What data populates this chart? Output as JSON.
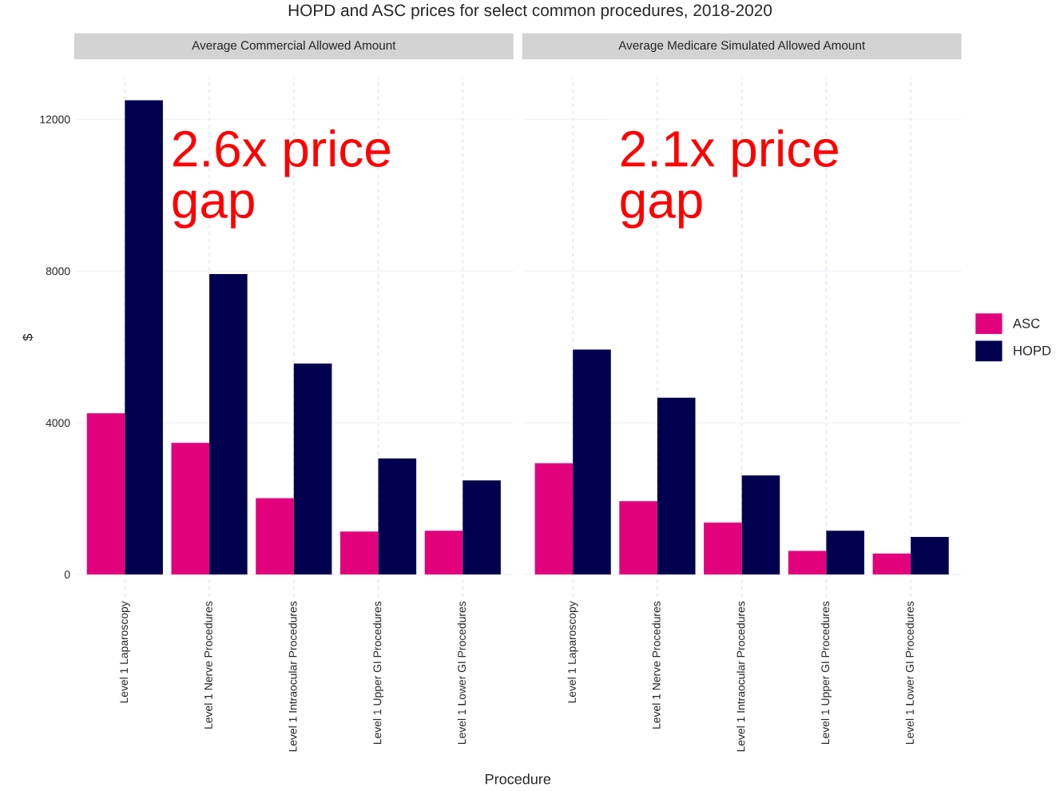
{
  "chart_data": [
    {
      "type": "bar",
      "title": "Average Commercial Allowed Amount",
      "ylabel": "$",
      "xlabel": "Procedure",
      "categories": [
        "Level 1 Laparoscopy",
        "Level 1 Nerve Procedures",
        "Level 1 Intraocular Procedures",
        "Level 1 Upper GI Procedures",
        "Level 1 Lower GI Procedures"
      ],
      "series": [
        {
          "name": "ASC",
          "color": "#e3007d",
          "values": [
            4250,
            3470,
            2010,
            1130,
            1150
          ]
        },
        {
          "name": "HOPD",
          "color": "#00004f",
          "values": [
            12500,
            7920,
            5560,
            3060,
            2480
          ]
        }
      ],
      "ylim": [
        -600,
        13100
      ],
      "yticks": [
        0,
        4000,
        8000,
        12000
      ],
      "grid": true,
      "legend": "right",
      "annotations": [
        "HOPD and ASC prices for select common procedures, 2018-2020",
        "2.6x price\ngap"
      ]
    },
    {
      "type": "bar",
      "title": "Average Medicare Simulated Allowed Amount",
      "categories": [
        "Level 1 Laparoscopy",
        "Level 1 Nerve Procedures",
        "Level 1 Intraocular Procedures",
        "Level 1 Upper GI Procedures",
        "Level 1 Lower GI Procedures"
      ],
      "series": [
        {
          "color": "#e3007d",
          "values": [
            2930,
            1930,
            1370,
            620,
            550
          ]
        },
        {
          "color": "#00004f",
          "values": [
            5930,
            4660,
            2610,
            1150,
            990
          ]
        }
      ],
      "ylim": [
        -600,
        13100
      ],
      "yticks": [
        0,
        4000,
        8000,
        12000
      ],
      "grid": true,
      "tick_labels": "x",
      "annotations": [
        "2.1x price\ngap"
      ]
    }
  ]
}
